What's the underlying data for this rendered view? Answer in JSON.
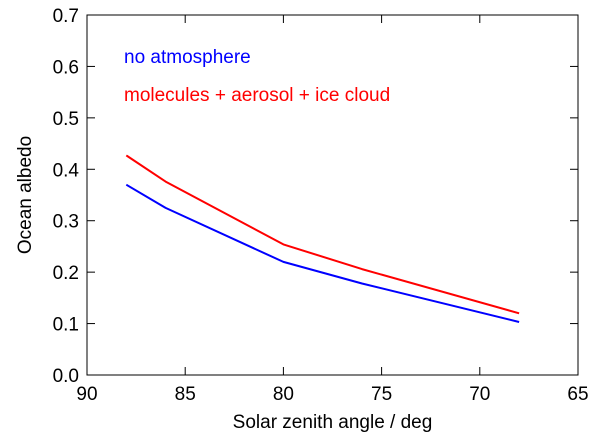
{
  "chart_data": {
    "type": "line",
    "xlabel": "Solar zenith angle / deg",
    "ylabel": "Ocean albedo",
    "xlim": [
      90,
      65
    ],
    "ylim": [
      0.0,
      0.7
    ],
    "x_reversed": true,
    "grid": false,
    "legend_placement": "top-left",
    "x_ticks": [
      90,
      85,
      80,
      75,
      70,
      65
    ],
    "y_ticks": [
      0.0,
      0.1,
      0.2,
      0.3,
      0.4,
      0.5,
      0.6,
      0.7
    ],
    "x_tick_labels": [
      "90",
      "85",
      "80",
      "75",
      "70",
      "65"
    ],
    "y_tick_labels": [
      "0.0",
      "0.1",
      "0.2",
      "0.3",
      "0.4",
      "0.5",
      "0.6",
      "0.7"
    ],
    "series": [
      {
        "name": "no atmosphere",
        "color": "#0000ff",
        "x": [
          88,
          86,
          80,
          76,
          68
        ],
        "y": [
          0.37,
          0.325,
          0.22,
          0.178,
          0.103
        ]
      },
      {
        "name": "molecules + aerosol + ice cloud",
        "color": "#ff0000",
        "x": [
          88,
          86,
          80,
          76,
          68
        ],
        "y": [
          0.427,
          0.376,
          0.254,
          0.206,
          0.12
        ]
      }
    ]
  }
}
